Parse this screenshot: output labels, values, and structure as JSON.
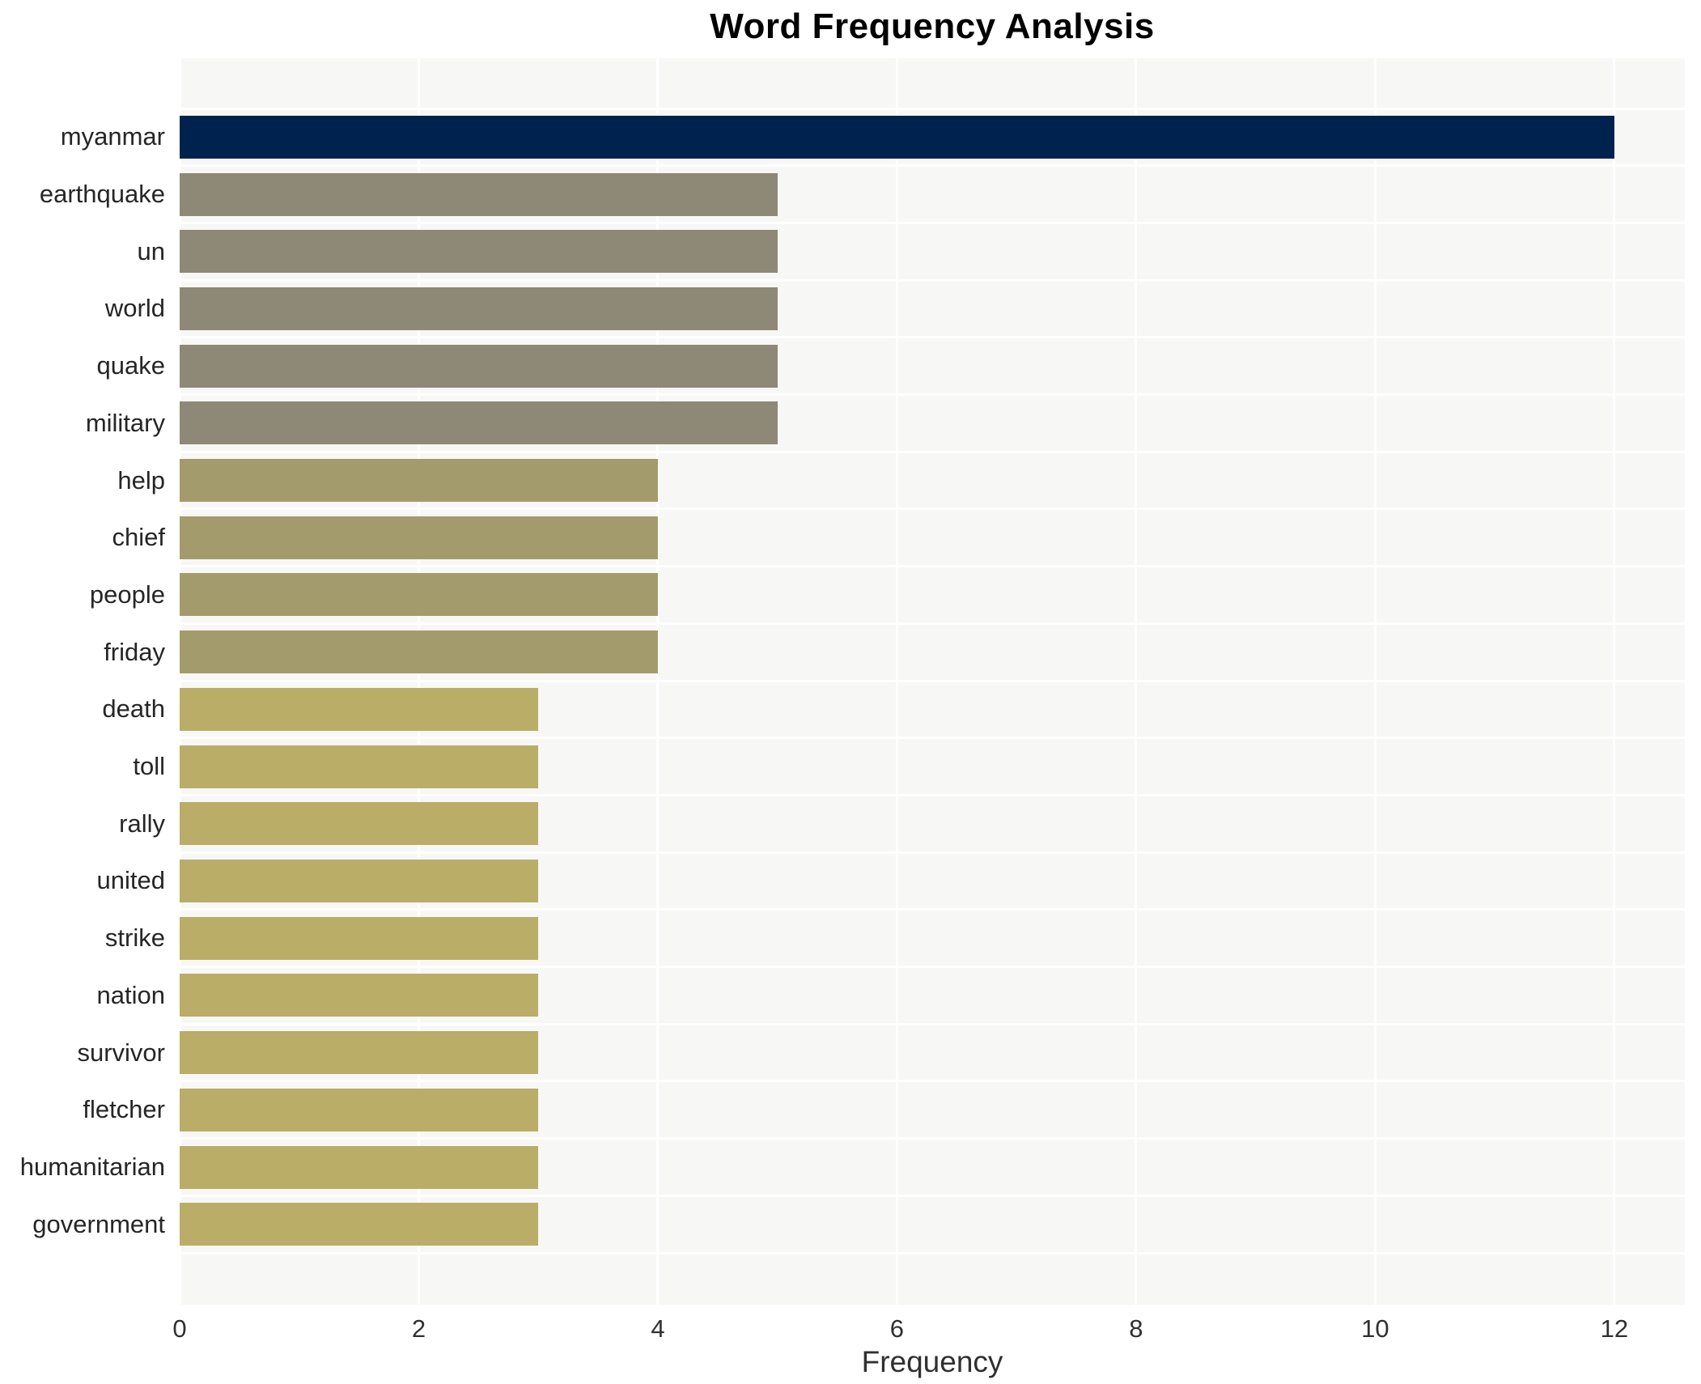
{
  "page": {
    "title": "Word Frequency Analysis"
  },
  "chart_data": {
    "type": "bar",
    "orientation": "horizontal",
    "title": "Word Frequency Analysis",
    "xlabel": "Frequency",
    "ylabel": "",
    "xlim": [
      0,
      12.59
    ],
    "x_ticks": [
      0,
      2,
      4,
      6,
      8,
      10,
      12
    ],
    "grid": true,
    "legend": false,
    "plot_background": "#f7f7f6",
    "grid_color": "#ffffff",
    "categories": [
      "myanmar",
      "earthquake",
      "un",
      "world",
      "quake",
      "military",
      "help",
      "chief",
      "people",
      "friday",
      "death",
      "toll",
      "rally",
      "united",
      "strike",
      "nation",
      "survivor",
      "fletcher",
      "humanitarian",
      "government"
    ],
    "values": [
      12,
      5,
      5,
      5,
      5,
      5,
      4,
      4,
      4,
      4,
      3,
      3,
      3,
      3,
      3,
      3,
      3,
      3,
      3,
      3
    ],
    "bar_colors": [
      "#00224e",
      "#8e8876",
      "#8e8876",
      "#8e8876",
      "#8e8876",
      "#8e8876",
      "#a49b6d",
      "#a49b6d",
      "#a49b6d",
      "#a49b6d",
      "#b9ad67",
      "#b9ad67",
      "#b9ad67",
      "#b9ad67",
      "#b9ad67",
      "#b9ad67",
      "#b9ad67",
      "#b9ad67",
      "#b9ad67",
      "#b9ad67"
    ]
  }
}
